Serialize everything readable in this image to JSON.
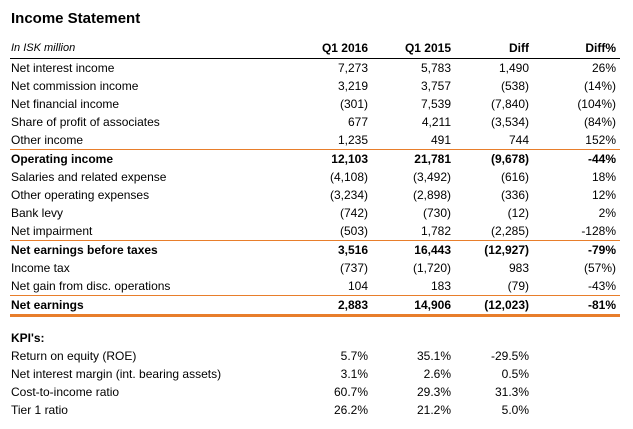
{
  "title": "Income Statement",
  "table": {
    "unit_label": "In ISK million",
    "columns": [
      "Q1 2016",
      "Q1 2015",
      "Diff",
      "Diff%"
    ],
    "rows": [
      {
        "label": "Net interest income",
        "q1_2016": "7,273",
        "q1_2015": "5,783",
        "diff": "1,490",
        "diff_pct": "26%",
        "bold": false,
        "rule_after": "none"
      },
      {
        "label": "Net commission income",
        "q1_2016": "3,219",
        "q1_2015": "3,757",
        "diff": "(538)",
        "diff_pct": "(14%)",
        "bold": false,
        "rule_after": "none"
      },
      {
        "label": "Net financial income",
        "q1_2016": "(301)",
        "q1_2015": "7,539",
        "diff": "(7,840)",
        "diff_pct": "(104%)",
        "bold": false,
        "rule_after": "none"
      },
      {
        "label": "Share of profit of associates",
        "q1_2016": "677",
        "q1_2015": "4,211",
        "diff": "(3,534)",
        "diff_pct": "(84%)",
        "bold": false,
        "rule_after": "none"
      },
      {
        "label": "Other income",
        "q1_2016": "1,235",
        "q1_2015": "491",
        "diff": "744",
        "diff_pct": "152%",
        "bold": false,
        "rule_after": "orange"
      },
      {
        "label": "Operating income",
        "q1_2016": "12,103",
        "q1_2015": "21,781",
        "diff": "(9,678)",
        "diff_pct": "-44%",
        "bold": true,
        "rule_after": "none"
      },
      {
        "label": "Salaries and related expense",
        "q1_2016": "(4,108)",
        "q1_2015": "(3,492)",
        "diff": "(616)",
        "diff_pct": "18%",
        "bold": false,
        "rule_after": "none"
      },
      {
        "label": "Other operating expenses",
        "q1_2016": "(3,234)",
        "q1_2015": "(2,898)",
        "diff": "(336)",
        "diff_pct": "12%",
        "bold": false,
        "rule_after": "none"
      },
      {
        "label": "Bank levy",
        "q1_2016": "(742)",
        "q1_2015": "(730)",
        "diff": "(12)",
        "diff_pct": "2%",
        "bold": false,
        "rule_after": "none"
      },
      {
        "label": "Net impairment",
        "q1_2016": "(503)",
        "q1_2015": "1,782",
        "diff": "(2,285)",
        "diff_pct": "-128%",
        "bold": false,
        "rule_after": "orange"
      },
      {
        "label": "Net earnings before taxes",
        "q1_2016": "3,516",
        "q1_2015": "16,443",
        "diff": "(12,927)",
        "diff_pct": "-79%",
        "bold": true,
        "rule_after": "none"
      },
      {
        "label": "Income tax",
        "q1_2016": "(737)",
        "q1_2015": "(1,720)",
        "diff": "983",
        "diff_pct": "(57%)",
        "bold": false,
        "rule_after": "none"
      },
      {
        "label": "Net gain from disc. operations",
        "q1_2016": "104",
        "q1_2015": "183",
        "diff": "(79)",
        "diff_pct": "-43%",
        "bold": false,
        "rule_after": "orange"
      },
      {
        "label": "Net earnings",
        "q1_2016": "2,883",
        "q1_2015": "14,906",
        "diff": "(12,023)",
        "diff_pct": "-81%",
        "bold": true,
        "rule_after": "orange-double"
      }
    ]
  },
  "kpis": {
    "heading": "KPI's:",
    "rows": [
      {
        "label": "Return on equity (ROE)",
        "q1_2016": "5.7%",
        "q1_2015": "35.1%",
        "diff": "-29.5%"
      },
      {
        "label": "Net interest margin (int. bearing assets)",
        "q1_2016": "3.1%",
        "q1_2015": "2.6%",
        "diff": "0.5%"
      },
      {
        "label": "Cost-to-income ratio",
        "q1_2016": "60.7%",
        "q1_2015": "29.3%",
        "diff": "31.3%"
      },
      {
        "label": "Tier 1 ratio",
        "q1_2016": "26.2%",
        "q1_2015": "21.2%",
        "diff": "5.0%"
      }
    ]
  },
  "colors": {
    "rule_orange": "#E87E2B",
    "rule_black": "#000000",
    "text": "#000000",
    "background": "#FFFFFF"
  }
}
